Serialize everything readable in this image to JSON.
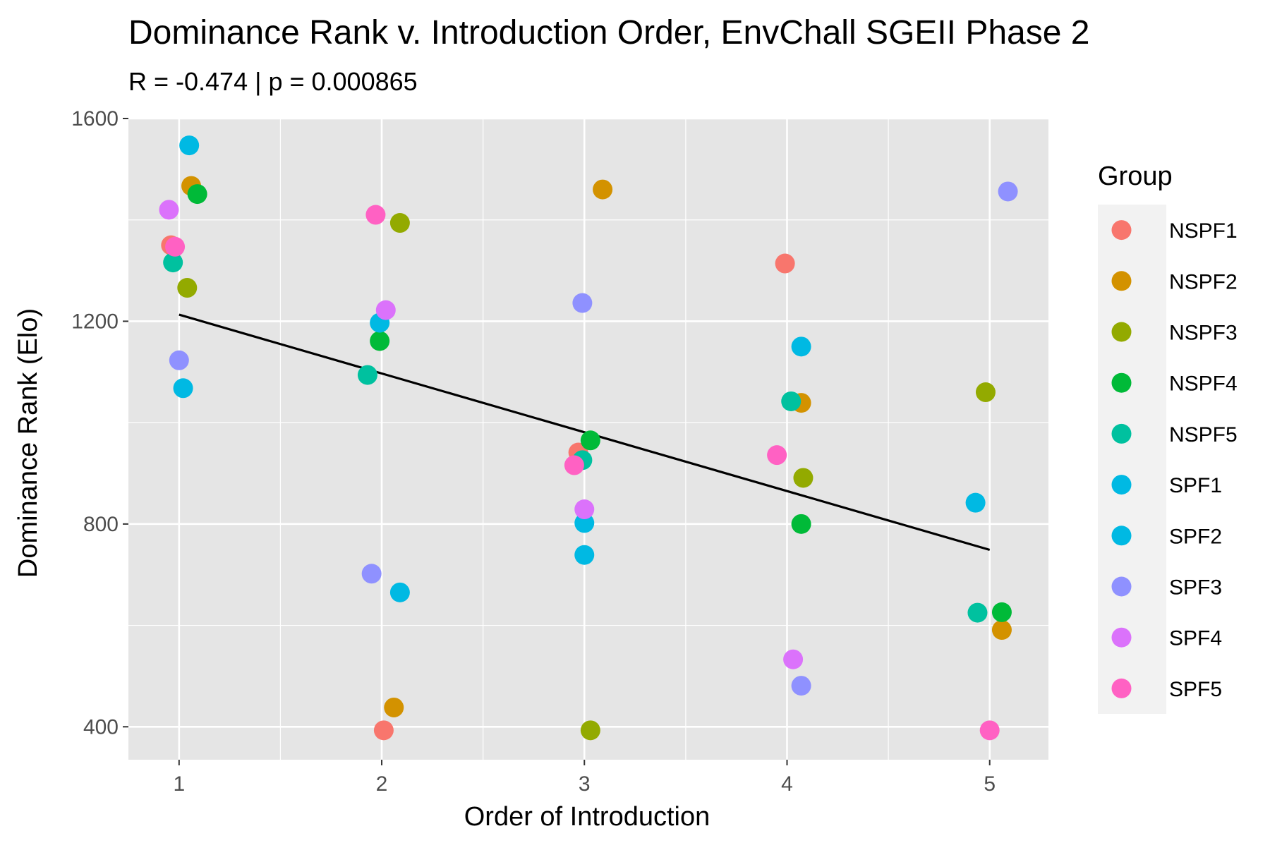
{
  "chart_data": {
    "type": "scatter",
    "title": "Dominance Rank v. Introduction Order, EnvChall SGEII Phase 2",
    "subtitle": "R = -0.474 | p = 0.000865",
    "xlabel": "Order of Introduction",
    "ylabel": "Dominance Rank (Elo)",
    "xlim": [
      0.75,
      5.29
    ],
    "ylim": [
      335,
      1600
    ],
    "x_ticks": [
      1,
      2,
      3,
      4,
      5
    ],
    "y_ticks": [
      400,
      800,
      1200,
      1600
    ],
    "grid": true,
    "legend": {
      "title": "Group",
      "position": "right"
    },
    "regression_line": {
      "x": [
        1,
        5
      ],
      "y": [
        1213,
        749
      ]
    },
    "series": [
      {
        "name": "NSPF1",
        "color": "#F8766D",
        "points": [
          {
            "x": 0.96,
            "y": 1350
          },
          {
            "x": 2.01,
            "y": 393
          },
          {
            "x": 2.97,
            "y": 941
          },
          {
            "x": 3.99,
            "y": 1314
          }
        ]
      },
      {
        "name": "NSPF2",
        "color": "#D39200",
        "points": [
          {
            "x": 1.06,
            "y": 1467
          },
          {
            "x": 2.06,
            "y": 438
          },
          {
            "x": 3.09,
            "y": 1460
          },
          {
            "x": 4.07,
            "y": 1039
          },
          {
            "x": 5.06,
            "y": 591
          }
        ]
      },
      {
        "name": "NSPF3",
        "color": "#93AA00",
        "points": [
          {
            "x": 1.04,
            "y": 1266
          },
          {
            "x": 2.09,
            "y": 1394
          },
          {
            "x": 3.03,
            "y": 393
          },
          {
            "x": 4.08,
            "y": 891
          },
          {
            "x": 4.98,
            "y": 1060
          }
        ]
      },
      {
        "name": "NSPF4",
        "color": "#00BA38",
        "points": [
          {
            "x": 1.09,
            "y": 1451
          },
          {
            "x": 1.99,
            "y": 1161
          },
          {
            "x": 3.03,
            "y": 965
          },
          {
            "x": 4.07,
            "y": 800
          },
          {
            "x": 5.06,
            "y": 626
          }
        ]
      },
      {
        "name": "NSPF5",
        "color": "#00C19F",
        "points": [
          {
            "x": 0.97,
            "y": 1316
          },
          {
            "x": 1.93,
            "y": 1094
          },
          {
            "x": 2.99,
            "y": 926
          },
          {
            "x": 4.02,
            "y": 1042
          },
          {
            "x": 4.94,
            "y": 625
          }
        ]
      },
      {
        "name": "SPF1",
        "color": "#00B9E3",
        "points": [
          {
            "x": 1.05,
            "y": 1547
          },
          {
            "x": 2.09,
            "y": 665
          },
          {
            "x": 3.0,
            "y": 802
          },
          {
            "x": 4.07,
            "y": 1150
          },
          {
            "x": 4.93,
            "y": 842
          }
        ]
      },
      {
        "name": "SPF2",
        "color": "#00B9E3",
        "points": [
          {
            "x": 1.02,
            "y": 1068
          },
          {
            "x": 1.99,
            "y": 1197
          },
          {
            "x": 3.0,
            "y": 739
          }
        ]
      },
      {
        "name": "SPF3",
        "color": "#8F91FF",
        "points": [
          {
            "x": 1.0,
            "y": 1123
          },
          {
            "x": 1.95,
            "y": 702
          },
          {
            "x": 2.99,
            "y": 1236
          },
          {
            "x": 4.07,
            "y": 481
          },
          {
            "x": 5.09,
            "y": 1456
          }
        ]
      },
      {
        "name": "SPF4",
        "color": "#DB72FB",
        "points": [
          {
            "x": 0.95,
            "y": 1420
          },
          {
            "x": 2.02,
            "y": 1222
          },
          {
            "x": 3.0,
            "y": 829
          },
          {
            "x": 4.03,
            "y": 533
          }
        ]
      },
      {
        "name": "SPF5",
        "color": "#FF61C3",
        "points": [
          {
            "x": 0.98,
            "y": 1347
          },
          {
            "x": 1.97,
            "y": 1410
          },
          {
            "x": 2.95,
            "y": 916
          },
          {
            "x": 3.95,
            "y": 936
          },
          {
            "x": 5.0,
            "y": 393
          }
        ]
      }
    ]
  }
}
